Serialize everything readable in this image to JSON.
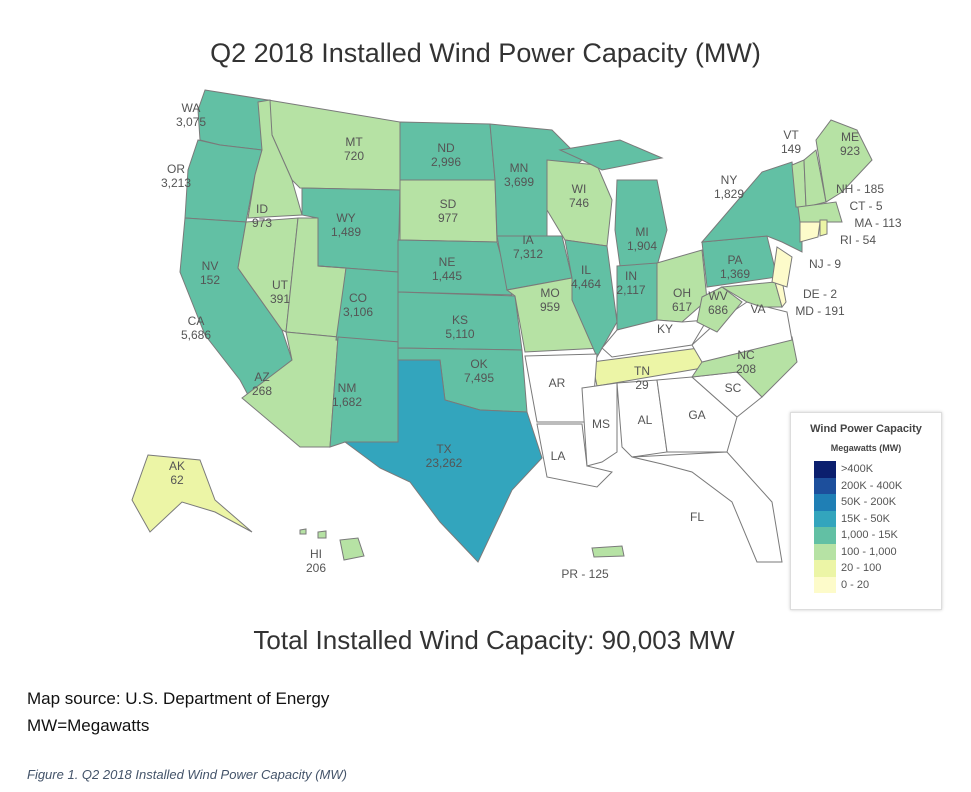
{
  "title": "Q2 2018 Installed Wind Power Capacity (MW)",
  "total": "Total Installed Wind Capacity: 90,003 MW",
  "source_lines": [
    "Map source: U.S. Department of Energy",
    "MW=Megawatts"
  ],
  "caption": "Figure 1. Q2 2018 Installed Wind Power Capacity (MW)",
  "legend": {
    "title": "Wind Power Capacity",
    "subtitle": "Megawatts (MW)",
    "bins": [
      {
        "label": ">400K",
        "color": "#0b1f6e"
      },
      {
        "label": "200K - 400K",
        "color": "#1d4f9c"
      },
      {
        "label": "50K - 200K",
        "color": "#1f7fb5"
      },
      {
        "label": "15K - 50K",
        "color": "#33a5bd"
      },
      {
        "label": "1,000 - 15K",
        "color": "#62c0a4"
      },
      {
        "label": "100 - 1,000",
        "color": "#b6e2a4"
      },
      {
        "label": "20 - 100",
        "color": "#ecf5a6"
      },
      {
        "label": "0 - 20",
        "color": "#fdfbca"
      }
    ],
    "no_data_color": "#ffffff"
  },
  "states": [
    {
      "abbr": "WA",
      "value": "3,075",
      "bin": 4
    },
    {
      "abbr": "OR",
      "value": "3,213",
      "bin": 4
    },
    {
      "abbr": "CA",
      "value": "5,686",
      "bin": 4
    },
    {
      "abbr": "ID",
      "value": "973",
      "bin": 5
    },
    {
      "abbr": "MT",
      "value": "720",
      "bin": 5
    },
    {
      "abbr": "NV",
      "value": "152",
      "bin": 5
    },
    {
      "abbr": "UT",
      "value": "391",
      "bin": 5
    },
    {
      "abbr": "AZ",
      "value": "268",
      "bin": 5
    },
    {
      "abbr": "WY",
      "value": "1,489",
      "bin": 4
    },
    {
      "abbr": "CO",
      "value": "3,106",
      "bin": 4
    },
    {
      "abbr": "NM",
      "value": "1,682",
      "bin": 4
    },
    {
      "abbr": "ND",
      "value": "2,996",
      "bin": 4
    },
    {
      "abbr": "SD",
      "value": "977",
      "bin": 5
    },
    {
      "abbr": "NE",
      "value": "1,445",
      "bin": 4
    },
    {
      "abbr": "KS",
      "value": "5,110",
      "bin": 4
    },
    {
      "abbr": "OK",
      "value": "7,495",
      "bin": 4
    },
    {
      "abbr": "TX",
      "value": "23,262",
      "bin": 3
    },
    {
      "abbr": "MN",
      "value": "3,699",
      "bin": 4
    },
    {
      "abbr": "IA",
      "value": "7,312",
      "bin": 4
    },
    {
      "abbr": "MO",
      "value": "959",
      "bin": 5
    },
    {
      "abbr": "WI",
      "value": "746",
      "bin": 5
    },
    {
      "abbr": "IL",
      "value": "4,464",
      "bin": 4
    },
    {
      "abbr": "MI",
      "value": "1,904",
      "bin": 4
    },
    {
      "abbr": "IN",
      "value": "2,117",
      "bin": 4
    },
    {
      "abbr": "OH",
      "value": "617",
      "bin": 5
    },
    {
      "abbr": "KY",
      "value": "",
      "bin": null
    },
    {
      "abbr": "TN",
      "value": "29",
      "bin": 6
    },
    {
      "abbr": "AR",
      "value": "",
      "bin": null
    },
    {
      "abbr": "LA",
      "value": "",
      "bin": null
    },
    {
      "abbr": "MS",
      "value": "",
      "bin": null
    },
    {
      "abbr": "AL",
      "value": "",
      "bin": null
    },
    {
      "abbr": "GA",
      "value": "",
      "bin": null
    },
    {
      "abbr": "FL",
      "value": "",
      "bin": null
    },
    {
      "abbr": "SC",
      "value": "",
      "bin": null
    },
    {
      "abbr": "NC",
      "value": "208",
      "bin": 5
    },
    {
      "abbr": "VA",
      "value": "",
      "bin": null
    },
    {
      "abbr": "WV",
      "value": "686",
      "bin": 5
    },
    {
      "abbr": "PA",
      "value": "1,369",
      "bin": 4
    },
    {
      "abbr": "NY",
      "value": "1,829",
      "bin": 4
    },
    {
      "abbr": "NJ",
      "value": "9",
      "bin": 7
    },
    {
      "abbr": "DE",
      "value": "2",
      "bin": 7
    },
    {
      "abbr": "MD",
      "value": "191",
      "bin": 5
    },
    {
      "abbr": "VT",
      "value": "149",
      "bin": 5
    },
    {
      "abbr": "NH",
      "value": "185",
      "bin": 5
    },
    {
      "abbr": "ME",
      "value": "923",
      "bin": 5
    },
    {
      "abbr": "MA",
      "value": "113",
      "bin": 5
    },
    {
      "abbr": "CT",
      "value": "5",
      "bin": 7
    },
    {
      "abbr": "RI",
      "value": "54",
      "bin": 6
    },
    {
      "abbr": "AK",
      "value": "62",
      "bin": 6
    },
    {
      "abbr": "HI",
      "value": "206",
      "bin": 5
    },
    {
      "abbr": "PR",
      "value": "125",
      "bin": 5
    }
  ]
}
